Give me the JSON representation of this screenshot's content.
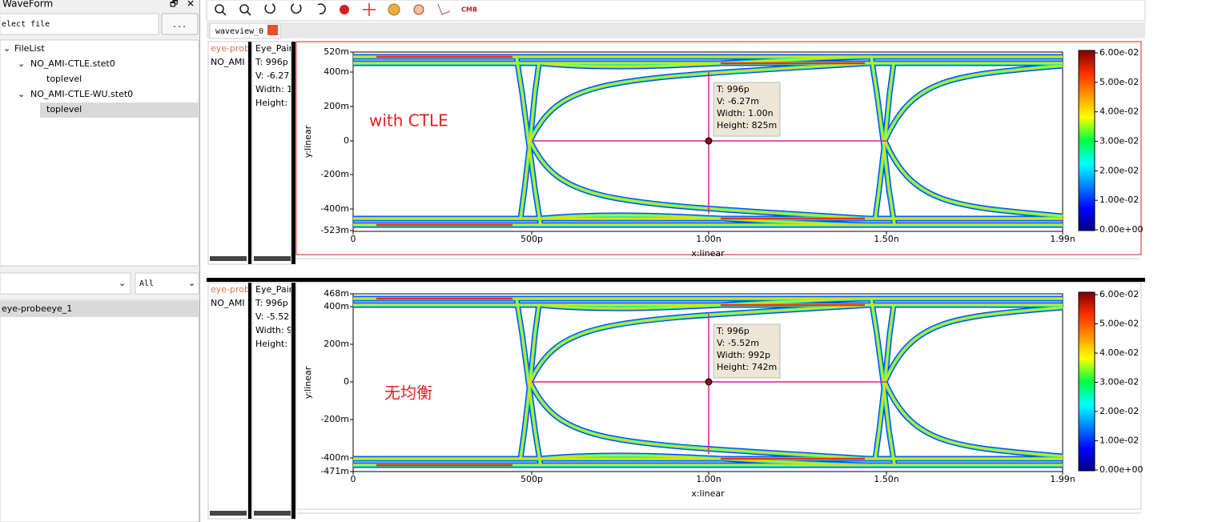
{
  "sidebar": {
    "title": "WaveForm",
    "file_input": "elect file",
    "browse_button": "...",
    "tree": {
      "root": "FileList",
      "files": [
        {
          "name": "NO_AMI-CTLE.stet0",
          "child": "toplevel"
        },
        {
          "name": "NO_AMI-CTLE-WU.stet0",
          "child": "toplevel"
        }
      ]
    },
    "filter": "All",
    "signals": [
      "eye-probeeye_1"
    ]
  },
  "toolbar": {
    "cmb_label": "CMB"
  },
  "tab": {
    "label": "waveview_0"
  },
  "panels": [
    {
      "signal_name": "eye-prob",
      "file_name": "NO_AMI",
      "info": {
        "title": "Eye_Pair",
        "t": "T: 996p",
        "v": "V: -6.27",
        "width": "Width: 1",
        "height": "Height:"
      },
      "annotation": "with CTLE",
      "y_axis_label": "y:linear",
      "x_axis_label": "x:linear",
      "yticks": [
        "520m",
        "400m",
        "200m",
        "0",
        "-200m",
        "-400m",
        "-523m"
      ],
      "xticks": [
        "0",
        "500p",
        "1.00n",
        "1.50n",
        "1.99n"
      ],
      "tooltip": [
        "T: 996p",
        "V: -6.27m",
        "Width: 1.00n",
        "Height: 825m"
      ],
      "colorbar_ticks": [
        "6.00e-02",
        "5.00e-02",
        "4.00e-02",
        "3.00e-02",
        "2.00e-02",
        "1.00e-02",
        "0.00e+00"
      ]
    },
    {
      "signal_name": "eye-prob",
      "file_name": "NO_AMI",
      "info": {
        "title": "Eye_Pair",
        "t": "T: 996p",
        "v": "V: -5.52",
        "width": "Width: 9",
        "height": "Height:"
      },
      "annotation": "无均衡",
      "y_axis_label": "y:linear",
      "x_axis_label": "x:linear",
      "yticks": [
        "468m",
        "400m",
        "200m",
        "0",
        "-200m",
        "-400m",
        "-471m"
      ],
      "xticks": [
        "0",
        "500p",
        "1.00n",
        "1.50n",
        "1.99n"
      ],
      "tooltip": [
        "T: 996p",
        "V: -5.52m",
        "Width: 992p",
        "Height: 742m"
      ],
      "colorbar_ticks": [
        "6.00e-02",
        "5.00e-02",
        "4.00e-02",
        "3.00e-02",
        "2.00e-02",
        "1.00e-02",
        "0.00e+00"
      ]
    }
  ]
}
